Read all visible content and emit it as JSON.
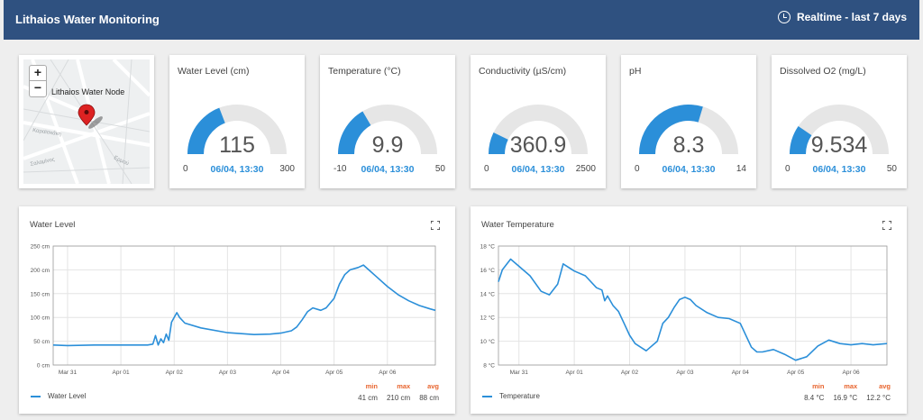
{
  "header": {
    "title": "Lithaios Water Monitoring",
    "range": "Realtime - last 7 days"
  },
  "map": {
    "zoom_in": "+",
    "zoom_out": "−",
    "node_label": "Lithaios Water Node"
  },
  "gauges": [
    {
      "title": "Water Level (cm)",
      "value": "115",
      "min": "0",
      "max": "300",
      "time": "06/04, 13:30",
      "fraction": 0.383
    },
    {
      "title": "Temperature (°C)",
      "value": "9.9",
      "min": "-10",
      "max": "50",
      "time": "06/04, 13:30",
      "fraction": 0.332
    },
    {
      "title": "Conductivity (µS/cm)",
      "value": "360.9",
      "min": "0",
      "max": "2500",
      "time": "06/04, 13:30",
      "fraction": 0.144
    },
    {
      "title": "pH",
      "value": "8.3",
      "min": "0",
      "max": "14",
      "time": "06/04, 13:30",
      "fraction": 0.593
    },
    {
      "title": "Dissolved O2 (mg/L)",
      "value": "9.534",
      "min": "0",
      "max": "50",
      "time": "06/04, 13:30",
      "fraction": 0.191
    }
  ],
  "colors": {
    "accent": "#2b8fd9",
    "gauge_track": "#e6e6e6",
    "header": "#2f5180",
    "stat_label": "#e8652f"
  },
  "charts": {
    "level": {
      "title": "Water Level",
      "legend": "Water Level",
      "stats": {
        "min_label": "min",
        "max_label": "max",
        "avg_label": "avg",
        "min": "41 cm",
        "max": "210 cm",
        "avg": "88 cm"
      }
    },
    "temp": {
      "title": "Water Temperature",
      "legend": "Temperature",
      "stats": {
        "min_label": "min",
        "max_label": "max",
        "avg_label": "avg",
        "min": "8.4 °C",
        "max": "16.9 °C",
        "avg": "12.2 °C"
      }
    }
  },
  "chart_data": [
    {
      "type": "line",
      "title": "Water Level",
      "xlabel": "",
      "ylabel": "",
      "x_ticks": [
        "Mar 31",
        "Apr 01",
        "Apr 02",
        "Apr 03",
        "Apr 04",
        "Apr 05",
        "Apr 06"
      ],
      "y_ticks": [
        "0 cm",
        "50 cm",
        "100 cm",
        "150 cm",
        "200 cm",
        "250 cm"
      ],
      "ylim": [
        0,
        250
      ],
      "xlim": [
        -0.27,
        6.9
      ],
      "grid": true,
      "series": [
        {
          "name": "Water Level",
          "x": [
            -0.27,
            0,
            0.5,
            1,
            1.5,
            1.6,
            1.65,
            1.7,
            1.75,
            1.8,
            1.85,
            1.9,
            1.95,
            2,
            2.05,
            2.1,
            2.2,
            2.5,
            3,
            3.5,
            3.8,
            4,
            4.2,
            4.3,
            4.4,
            4.5,
            4.6,
            4.75,
            4.85,
            5,
            5.1,
            5.2,
            5.3,
            5.45,
            5.55,
            5.65,
            5.8,
            6,
            6.2,
            6.4,
            6.6,
            6.8,
            6.9
          ],
          "y": [
            42,
            41,
            42,
            42,
            42,
            44,
            62,
            42,
            55,
            47,
            65,
            52,
            90,
            100,
            110,
            100,
            88,
            78,
            68,
            64,
            65,
            67,
            72,
            80,
            95,
            112,
            120,
            115,
            120,
            140,
            170,
            190,
            200,
            205,
            210,
            200,
            185,
            165,
            148,
            135,
            125,
            118,
            115
          ]
        }
      ]
    },
    {
      "type": "line",
      "title": "Water Temperature",
      "xlabel": "",
      "ylabel": "",
      "x_ticks": [
        "Mar 31",
        "Apr 01",
        "Apr 02",
        "Apr 03",
        "Apr 04",
        "Apr 05",
        "Apr 06"
      ],
      "y_ticks": [
        "8 °C",
        "10 °C",
        "12 °C",
        "14 °C",
        "16 °C",
        "18 °C"
      ],
      "ylim": [
        8,
        18
      ],
      "xlim": [
        -0.37,
        6.65
      ],
      "grid": true,
      "series": [
        {
          "name": "Temperature",
          "x": [
            -0.37,
            -0.3,
            -0.15,
            0,
            0.2,
            0.4,
            0.55,
            0.7,
            0.8,
            1,
            1.2,
            1.4,
            1.5,
            1.55,
            1.6,
            1.7,
            1.8,
            1.9,
            2,
            2.1,
            2.3,
            2.5,
            2.6,
            2.7,
            2.8,
            2.9,
            3,
            3.1,
            3.2,
            3.4,
            3.6,
            3.8,
            4,
            4.2,
            4.3,
            4.4,
            4.6,
            4.8,
            5,
            5.2,
            5.4,
            5.6,
            5.8,
            6,
            6.2,
            6.4,
            6.65
          ],
          "y": [
            15,
            16,
            16.9,
            16.3,
            15.5,
            14.2,
            13.9,
            14.8,
            16.5,
            15.9,
            15.5,
            14.5,
            14.3,
            13.4,
            13.8,
            13,
            12.5,
            11.5,
            10.5,
            9.8,
            9.2,
            10,
            11.5,
            12,
            12.8,
            13.5,
            13.7,
            13.5,
            13,
            12.4,
            12,
            11.9,
            11.5,
            9.5,
            9.1,
            9.1,
            9.3,
            8.9,
            8.4,
            8.7,
            9.6,
            10.1,
            9.8,
            9.7,
            9.8,
            9.7,
            9.8
          ]
        }
      ]
    }
  ]
}
